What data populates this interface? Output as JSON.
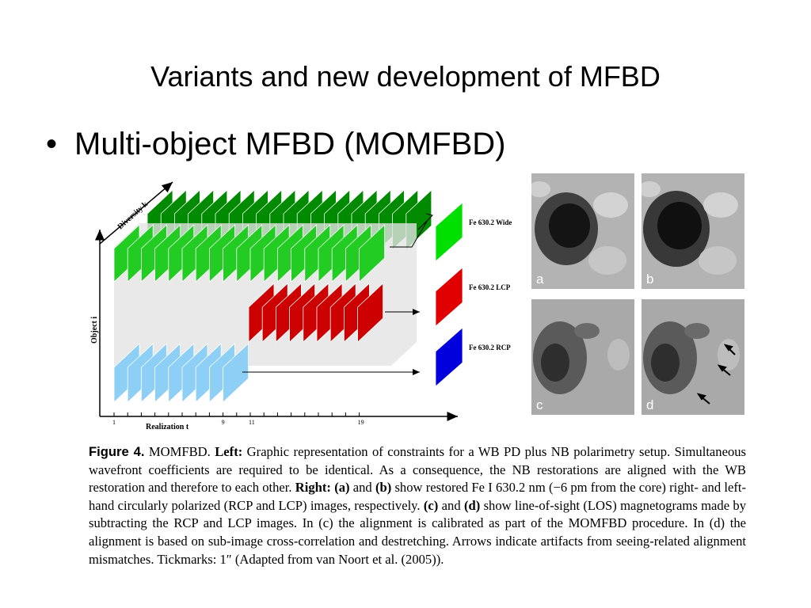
{
  "slide": {
    "title": "Variants and new development of MFBD",
    "bullet": "Multi-object MFBD (MOMFBD)"
  },
  "diagram": {
    "yaxis_label": "Object  i",
    "xaxis_label": "Realization  t",
    "diversity_label": "Diversity  k",
    "x_ticks": [
      "1",
      "9",
      "11",
      "19"
    ],
    "channels": [
      {
        "label": "Fe 630.2 Wide",
        "color": "#00e000"
      },
      {
        "label": "Fe 630.2 LCP",
        "color": "#e00000"
      },
      {
        "label": "Fe 630.2 RCP",
        "color": "#0000dd"
      }
    ],
    "colors": {
      "green_dark": "#008a00",
      "green": "#22cc22",
      "red": "#cc0000",
      "blue_light": "#8ecff5"
    }
  },
  "images": {
    "panels": [
      {
        "letter": "a",
        "kind": "intensity"
      },
      {
        "letter": "b",
        "kind": "intensity"
      },
      {
        "letter": "c",
        "kind": "magnetogram"
      },
      {
        "letter": "d",
        "kind": "magnetogram"
      }
    ]
  },
  "caption": {
    "figure_label": "Figure 4.",
    "s1": " MOMFBD. ",
    "left_label": "Left:",
    "s2": " Graphic representation of constraints for a WB PD plus NB polarimetry setup. Simultaneous wavefront coefficients are required to be identical. As a consequence, the NB restorations are aligned with the WB restoration and therefore to each other. ",
    "right_label": "Right:",
    "s3": " ",
    "ab_label": "(a)",
    "s4": " and ",
    "b_label": "(b)",
    "s5": " show restored Fe I 630.2 nm (−6 pm from the core) right- and left-hand circularly polarized (RCP and LCP) images, respectively. ",
    "c_label": "(c)",
    "s6": " and ",
    "d_label": "(d)",
    "s7": " show line-of-sight (LOS) magnetograms made by subtracting the RCP and LCP images. In (c) the alignment is calibrated as part of the MOMFBD procedure. In (d) the alignment is based on sub-image cross-correlation and destretching. Arrows indicate artifacts from seeing-related alignment mismatches. Tickmarks: 1″ (Adapted from van Noort et al. (2005))."
  }
}
